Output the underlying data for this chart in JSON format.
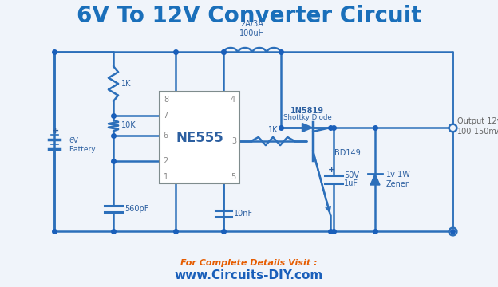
{
  "title": "6V To 12V Converter Circuit",
  "title_color": "#1a6fba",
  "title_fontsize": 20,
  "wire_color": "#2c6fba",
  "wire_lw": 1.8,
  "text_color": "#2c5fa0",
  "footer_text1": "For Complete Details Visit :",
  "footer_text2": "www.Circuits-DIY.com",
  "footer_color1": "#e65c00",
  "footer_color2": "#1a5fba",
  "bg_color": "#f0f4fa",
  "dot_color": "#1a5fba",
  "pin_color": "#888888",
  "output_text_color": "#666666"
}
